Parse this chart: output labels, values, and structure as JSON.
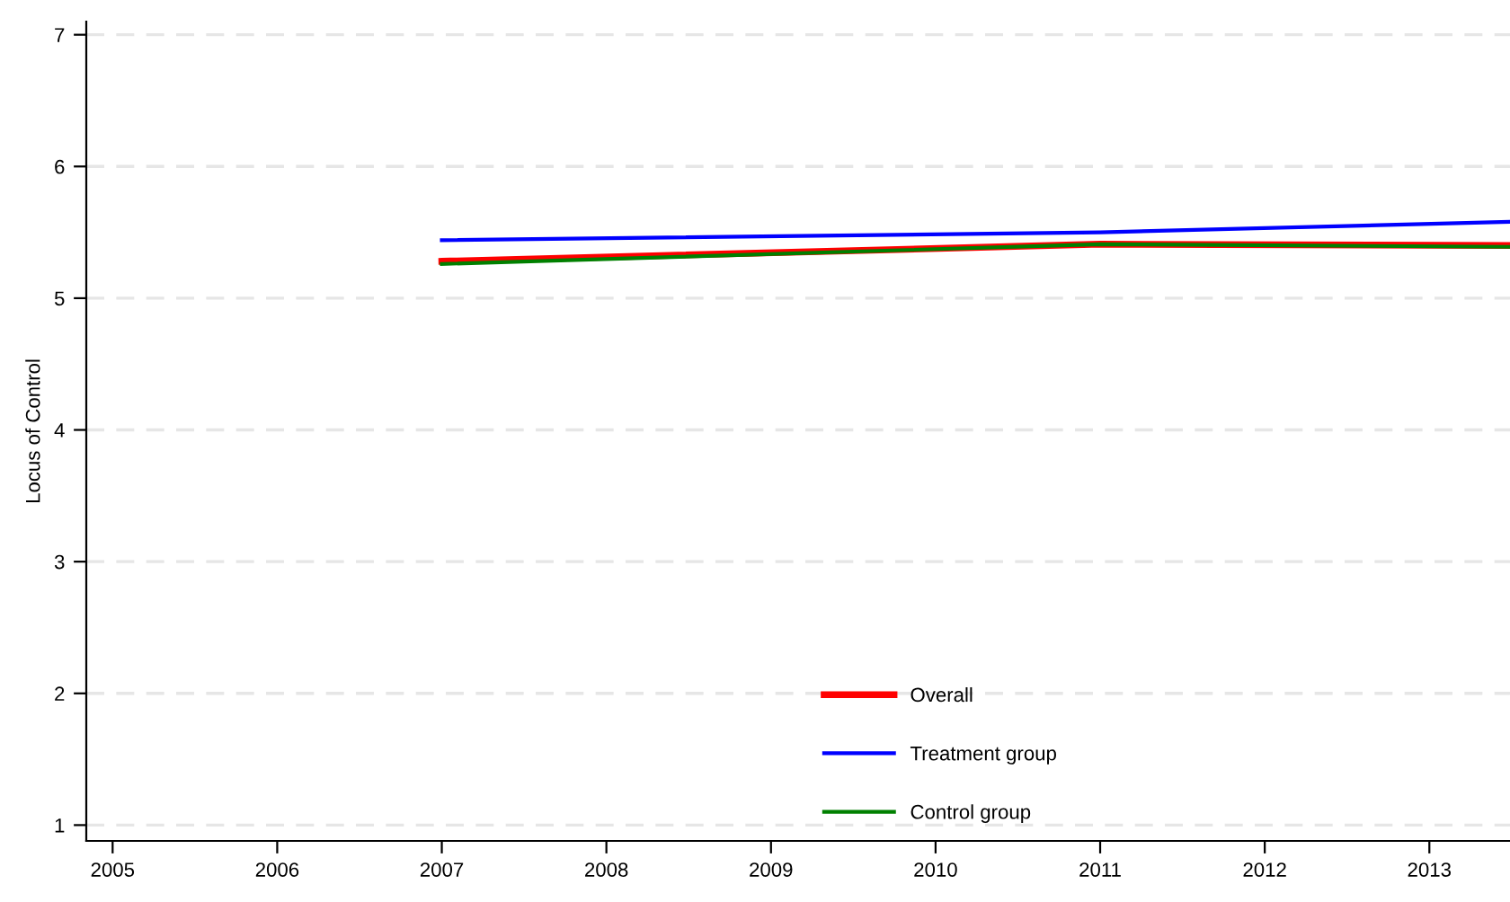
{
  "chart_data": {
    "type": "line",
    "ylabel": "Locus of Control",
    "xlim": [
      2004.84,
      2013.49
    ],
    "xticks": [
      2005,
      2006,
      2007,
      2008,
      2009,
      2010,
      2011,
      2012,
      2013
    ],
    "ylim": [
      0.88,
      7.1
    ],
    "yticks": [
      1,
      2,
      3,
      4,
      5,
      6,
      7
    ],
    "grid": "y",
    "legend": "bottom",
    "line_style": "solid",
    "marker": "none",
    "series": [
      {
        "name": "Overall",
        "color": "#ff0000",
        "x": [
          2007,
          2011,
          2013.49
        ],
        "values": [
          5.28,
          5.41,
          5.4
        ]
      },
      {
        "name": "Treatment group",
        "color": "#0000ff",
        "x": [
          2007,
          2011,
          2013.49
        ],
        "values": [
          5.44,
          5.5,
          5.58
        ]
      },
      {
        "name": "Control group",
        "color": "#008000",
        "x": [
          2007,
          2011,
          2013.49
        ],
        "values": [
          5.26,
          5.41,
          5.39
        ]
      }
    ]
  }
}
